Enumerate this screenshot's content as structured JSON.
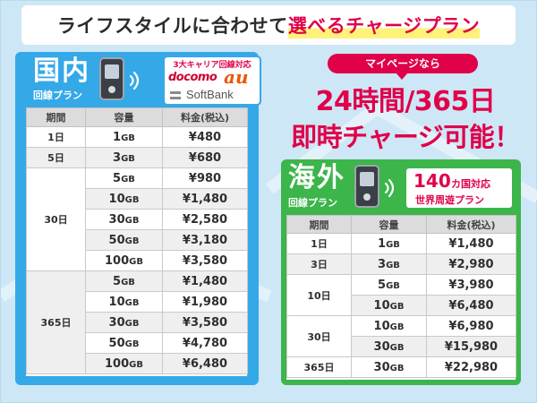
{
  "headline": {
    "part1": "ライフスタイルに合わせて",
    "part2": "選べるチャージプラン"
  },
  "domestic": {
    "title": "国内",
    "subtitle": "回線プラン",
    "carriers": {
      "header": "3大キャリア回線対応",
      "docomo": "docomo",
      "au": "au",
      "softbank": "SoftBank"
    },
    "table": {
      "headers": [
        "期間",
        "容量",
        "料金(税込)"
      ],
      "rows": [
        {
          "period": "1日",
          "gb": "1",
          "price": "¥480"
        },
        {
          "period": "5日",
          "gb": "3",
          "price": "¥680"
        },
        {
          "period": "30日",
          "gb": "5",
          "price": "¥980"
        },
        {
          "period": "",
          "gb": "10",
          "price": "¥1,480"
        },
        {
          "period": "",
          "gb": "30",
          "price": "¥2,580"
        },
        {
          "period": "",
          "gb": "50",
          "price": "¥3,180"
        },
        {
          "period": "",
          "gb": "100",
          "price": "¥3,580"
        },
        {
          "period": "365日",
          "gb": "5",
          "price": "¥1,480"
        },
        {
          "period": "",
          "gb": "10",
          "price": "¥1,980"
        },
        {
          "period": "",
          "gb": "30",
          "price": "¥3,580"
        },
        {
          "period": "",
          "gb": "50",
          "price": "¥4,780"
        },
        {
          "period": "",
          "gb": "100",
          "price": "¥6,480"
        }
      ]
    }
  },
  "unit": "GB",
  "mypage": {
    "badge": "マイページなら",
    "line1": "24時間/365日",
    "line2": "即時チャージ可能！"
  },
  "overseas": {
    "title": "海外",
    "subtitle": "回線プラン",
    "countries": {
      "number": "140",
      "unit": "カ国対応",
      "roaming": "世界周遊プラン"
    },
    "table": {
      "headers": [
        "期間",
        "容量",
        "料金(税込)"
      ],
      "rows": [
        {
          "period": "1日",
          "gb": "1",
          "price": "¥1,480"
        },
        {
          "period": "3日",
          "gb": "3",
          "price": "¥2,980"
        },
        {
          "period": "10日",
          "gb": "5",
          "price": "¥3,980"
        },
        {
          "period": "",
          "gb": "10",
          "price": "¥6,480"
        },
        {
          "period": "30日",
          "gb": "10",
          "price": "¥6,980"
        },
        {
          "period": "",
          "gb": "30",
          "price": "¥15,980"
        },
        {
          "period": "365日",
          "gb": "30",
          "price": "¥22,980"
        }
      ]
    }
  },
  "colors": {
    "blue": "#35a8e8",
    "green": "#3cb54a",
    "pink": "#e0004a",
    "background": "#cde7f6"
  },
  "icons": {
    "router": "pocket-wifi-router-icon",
    "wifi": "wifi-signal-icon"
  }
}
